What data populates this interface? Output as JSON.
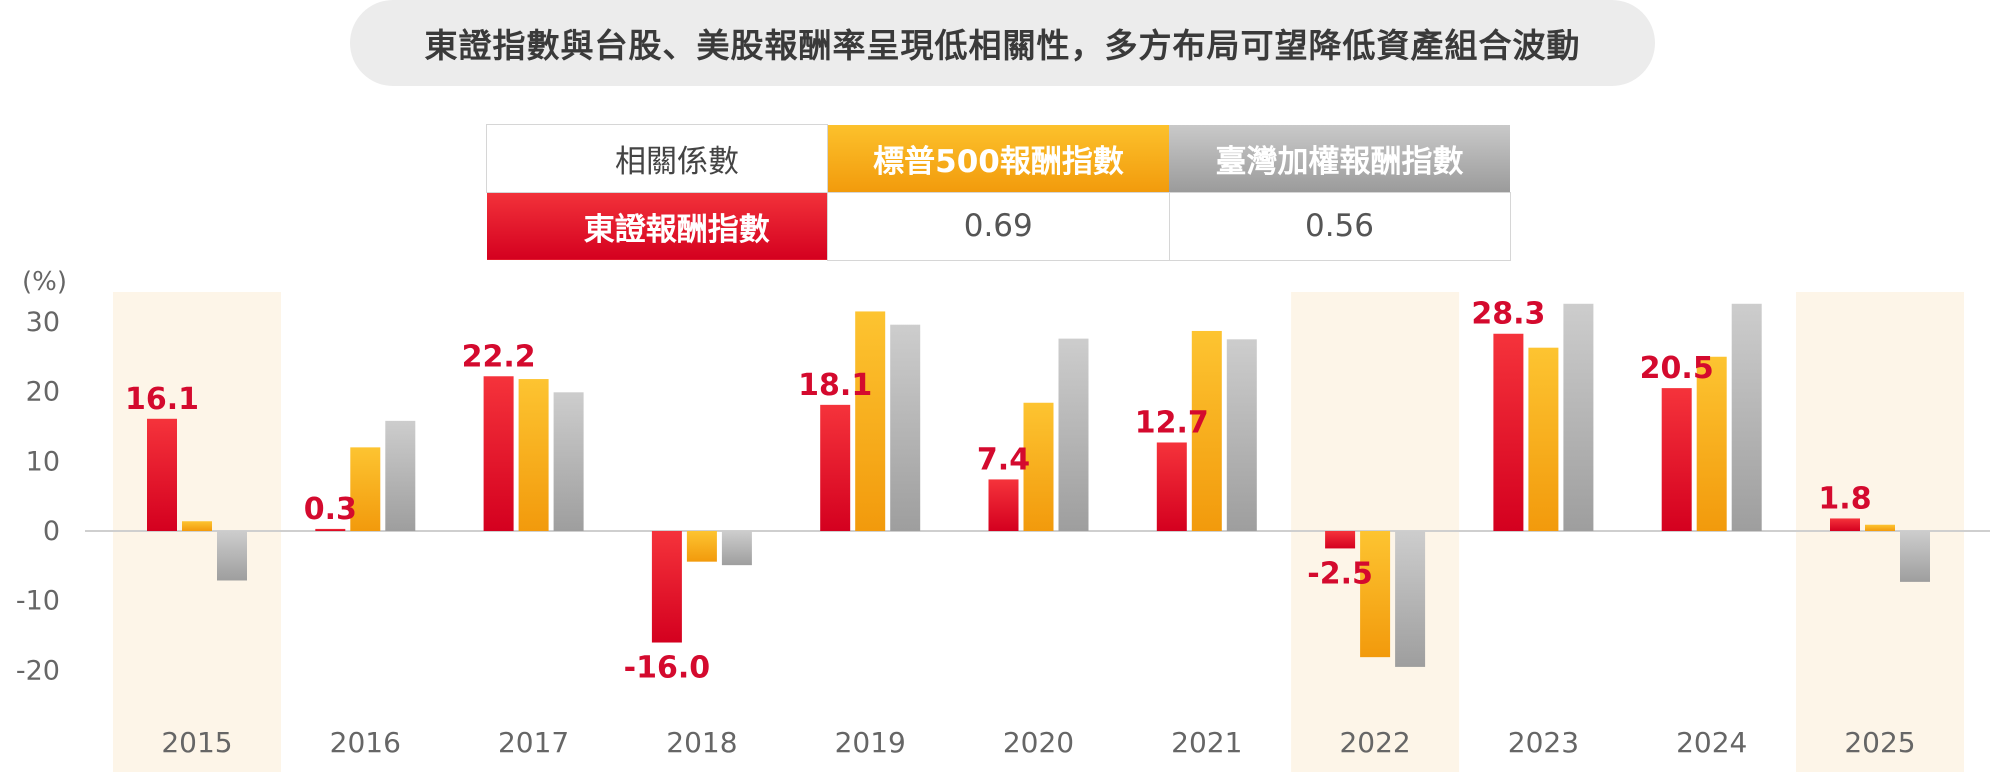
{
  "title": "東證指數與台股、美股報酬率呈現低相關性，多方布局可望降低資產組合波動",
  "correlation_table": {
    "header_label": "相關係數",
    "col1": "標普500報酬指數",
    "col2": "臺灣加權報酬指數",
    "row_label": "東證報酬指數",
    "val1": "0.69",
    "val2": "0.56"
  },
  "colors": {
    "red": "#e8101e",
    "orange": "#f7ac16",
    "gray": "#b3b3b3",
    "highlight": "#fdf5e8",
    "label_red": "#d40a2e"
  },
  "chart_data": {
    "type": "bar",
    "ylabel": "(%)",
    "ylim": [
      -30,
      30
    ],
    "yticks": [
      30,
      20,
      10,
      0,
      -10,
      -20
    ],
    "grid": false,
    "categories": [
      "2015",
      "2016",
      "2017",
      "2018",
      "2019",
      "2020",
      "2021",
      "2022",
      "2023",
      "2024",
      "2025"
    ],
    "highlighted": [
      "2015",
      "2022",
      "2025"
    ],
    "series": [
      {
        "name": "東證報酬指數",
        "color": "#e8101e",
        "values": [
          16.1,
          0.3,
          22.2,
          -16.0,
          18.1,
          7.4,
          12.7,
          -2.5,
          28.3,
          20.5,
          1.8
        ],
        "labels": [
          "16.1",
          "0.3",
          "22.2",
          "-16.0",
          "18.1",
          "7.4",
          "12.7",
          "-2.5",
          "28.3",
          "20.5",
          "1.8"
        ]
      },
      {
        "name": "標普500報酬指數",
        "color": "#f7ac16",
        "values": [
          1.4,
          12.0,
          21.8,
          -4.4,
          31.5,
          18.4,
          28.7,
          -18.1,
          26.3,
          25.0,
          0.9
        ]
      },
      {
        "name": "臺灣加權報酬指數",
        "color": "#b3b3b3",
        "values": [
          -7.1,
          15.8,
          19.9,
          -4.9,
          29.6,
          27.6,
          27.5,
          -19.5,
          32.6,
          32.6,
          -7.3
        ]
      }
    ]
  }
}
